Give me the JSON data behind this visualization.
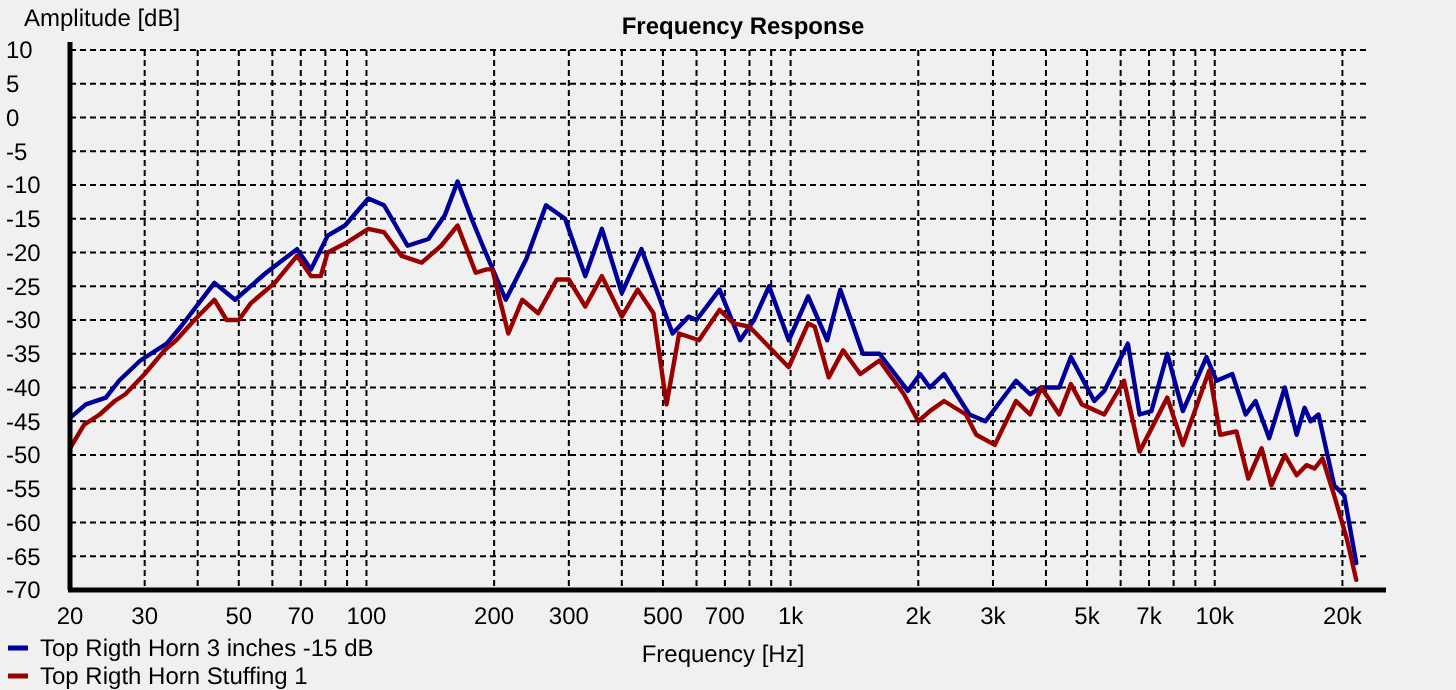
{
  "chart_data": {
    "type": "line",
    "title": "Frequency Response",
    "xlabel": "Frequency [Hz]",
    "ylabel": "Amplitude [dB]",
    "log": "x",
    "grid": true,
    "legend": "bottom left",
    "line_style": "solid",
    "marker": "none",
    "xlim": [
      20,
      24000
    ],
    "ylim": [
      -70,
      10
    ],
    "xticks": [
      20,
      30,
      {
        "value": 40,
        "label": null
      },
      50,
      {
        "value": 60,
        "label": null
      },
      70,
      {
        "value": 80,
        "label": null
      },
      {
        "value": 90,
        "label": null
      },
      100,
      200,
      300,
      {
        "value": 400,
        "label": null
      },
      500,
      {
        "value": 600,
        "label": null
      },
      700,
      {
        "value": 800,
        "label": null
      },
      {
        "value": 900,
        "label": null
      },
      {
        "value": 1000,
        "label": "1k"
      },
      {
        "value": 2000,
        "label": "2k"
      },
      {
        "value": 3000,
        "label": "3k"
      },
      {
        "value": 4000,
        "label": null
      },
      {
        "value": 5000,
        "label": "5k"
      },
      {
        "value": 6000,
        "label": null
      },
      {
        "value": 7000,
        "label": "7k"
      },
      {
        "value": 8000,
        "label": null
      },
      {
        "value": 9000,
        "label": null
      },
      {
        "value": 10000,
        "label": "10k"
      },
      {
        "value": 20000,
        "label": "20k"
      }
    ],
    "yticks": [
      10,
      5,
      0,
      -5,
      -10,
      -15,
      -20,
      -25,
      -30,
      -35,
      -40,
      -45,
      -50,
      -55,
      -60,
      -65,
      -70
    ],
    "series": [
      {
        "name": "Top Rigth Horn 3 inches -15 dB",
        "color": "#000099",
        "x": [
          20,
          21.8,
          24.3,
          26.1,
          29.3,
          33.8,
          36.5,
          43.8,
          49,
          58,
          68.6,
          74,
          81,
          89,
          101,
          110,
          125,
          140,
          153,
          164,
          177,
          188,
          213,
          238,
          265,
          294,
          328,
          359,
          400,
          445,
          527,
          575,
          600,
          680,
          760,
          820,
          890,
          990,
          1100,
          1220,
          1310,
          1480,
          1620,
          1890,
          2020,
          2130,
          2300,
          2520,
          2640,
          2880,
          3400,
          3670,
          3900,
          4300,
          4580,
          5200,
          5490,
          6240,
          6650,
          7090,
          7730,
          8410,
          9560,
          10100,
          11000,
          11830,
          12480,
          13440,
          14630,
          15600,
          16280,
          16830,
          17560,
          19130,
          20200,
          21560
        ],
        "values": [
          -44.5,
          -42.5,
          -41.5,
          -39,
          -36,
          -33.5,
          -31,
          -24.5,
          -27,
          -23,
          -19.5,
          -22.5,
          -17.5,
          -16,
          -12,
          -13,
          -19,
          -18,
          -14.5,
          -9.5,
          -15,
          -19,
          -27,
          -21,
          -13,
          -15,
          -23.5,
          -16.5,
          -26,
          -19.5,
          -32,
          -29.5,
          -30,
          -25.5,
          -33,
          -30,
          -25,
          -33,
          -26.5,
          -33,
          -25.5,
          -35,
          -35,
          -40.5,
          -38,
          -40,
          -38,
          -42,
          -44,
          -45,
          -39,
          -41,
          -40,
          -40,
          -35.5,
          -42,
          -40.5,
          -33.5,
          -44,
          -43.5,
          -35,
          -43.5,
          -35.5,
          -39,
          -38,
          -44,
          -42,
          -47.5,
          -40,
          -47,
          -43,
          -45,
          -44,
          -54.5,
          -56,
          -66
        ]
      },
      {
        "name": "Top Rigth Horn Stuffing 1",
        "color": "#990000",
        "x": [
          20,
          21.6,
          23.5,
          25.5,
          27,
          30,
          33.4,
          35.6,
          39.3,
          43.8,
          46.8,
          50,
          53.4,
          60.8,
          68.6,
          74,
          78,
          81,
          90,
          101,
          110,
          121,
          135,
          150,
          164,
          181,
          192,
          198,
          216,
          233,
          254,
          281,
          300,
          328,
          359,
          400,
          436,
          475,
          510,
          546,
          608,
          680,
          734,
          800,
          890,
          990,
          1100,
          1140,
          1230,
          1330,
          1460,
          1620,
          1850,
          2000,
          2130,
          2300,
          2590,
          2740,
          3030,
          3400,
          3670,
          3900,
          4300,
          4580,
          4860,
          5490,
          6110,
          6650,
          7730,
          8410,
          9700,
          10300,
          11250,
          12000,
          12900,
          13600,
          14630,
          15600,
          16460,
          17200,
          17950,
          19130,
          20500,
          21560
        ],
        "values": [
          -49,
          -45.5,
          -44,
          -42,
          -41,
          -38,
          -34.5,
          -33,
          -30,
          -27,
          -30,
          -30,
          -27.5,
          -24.5,
          -20.5,
          -23.5,
          -23.5,
          -20,
          -18.5,
          -16.5,
          -17,
          -20.5,
          -21.5,
          -19,
          -16,
          -23,
          -22.5,
          -22.5,
          -32,
          -27,
          -29,
          -24,
          -24,
          -28,
          -23.5,
          -29.5,
          -25.5,
          -29,
          -42.5,
          -32,
          -33,
          -28.5,
          -30.5,
          -31,
          -34,
          -37,
          -30.5,
          -31,
          -38.5,
          -34.5,
          -38,
          -36,
          -41,
          -45,
          -43.5,
          -42,
          -44,
          -47,
          -48.5,
          -42,
          -44,
          -40,
          -44,
          -39.5,
          -42.5,
          -44,
          -39,
          -49.5,
          -41.5,
          -48.5,
          -37.5,
          -47,
          -46.5,
          -53.5,
          -49,
          -54.5,
          -50,
          -53,
          -51.5,
          -52,
          -50.5,
          -56,
          -62.5,
          -68.5
        ]
      }
    ]
  }
}
